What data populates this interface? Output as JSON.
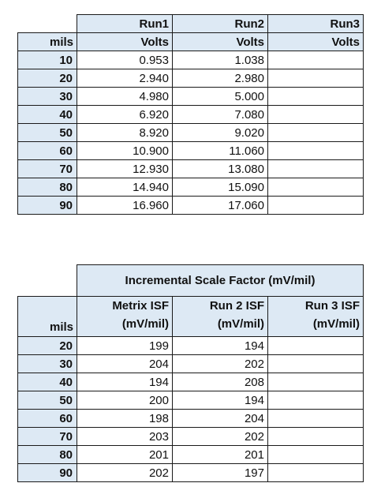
{
  "table1": {
    "header_runs": [
      "Run1",
      "Run2",
      "Run3"
    ],
    "row_label": "mils",
    "header_units": [
      "Volts",
      "Volts",
      "Volts"
    ],
    "rows": [
      [
        "10",
        "0.953",
        "1.038",
        ""
      ],
      [
        "20",
        "2.940",
        "2.980",
        ""
      ],
      [
        "30",
        "4.980",
        "5.000",
        ""
      ],
      [
        "40",
        "6.920",
        "7.080",
        ""
      ],
      [
        "50",
        "8.920",
        "9.020",
        ""
      ],
      [
        "60",
        "10.900",
        "11.060",
        ""
      ],
      [
        "70",
        "12.930",
        "13.080",
        ""
      ],
      [
        "80",
        "14.940",
        "15.090",
        ""
      ],
      [
        "90",
        "16.960",
        "17.060",
        ""
      ]
    ]
  },
  "table2": {
    "title": "Incremental Scale Factor (mV/mil)",
    "row_label": "mils",
    "columns": [
      {
        "line1": "Metrix ISF",
        "line2": "(mV/mil)"
      },
      {
        "line1": "Run 2 ISF",
        "line2": "(mV/mil)"
      },
      {
        "line1": "Run 3 ISF",
        "line2": "(mV/mil)"
      }
    ],
    "rows": [
      [
        "20",
        "199",
        "194",
        ""
      ],
      [
        "30",
        "204",
        "202",
        ""
      ],
      [
        "40",
        "194",
        "208",
        ""
      ],
      [
        "50",
        "200",
        "194",
        ""
      ],
      [
        "60",
        "198",
        "204",
        ""
      ],
      [
        "70",
        "203",
        "202",
        ""
      ],
      [
        "80",
        "201",
        "201",
        ""
      ],
      [
        "90",
        "202",
        "197",
        ""
      ]
    ]
  },
  "colors": {
    "header_fill": "#dde9f4",
    "border": "#1a1a1a"
  }
}
